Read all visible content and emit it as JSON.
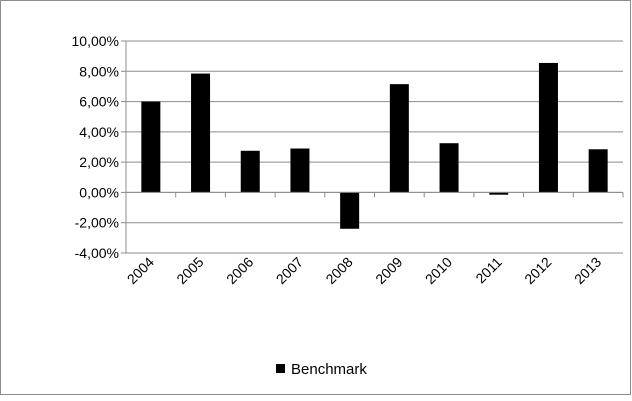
{
  "chart_data": {
    "type": "bar",
    "categories": [
      "2004",
      "2005",
      "2006",
      "2007",
      "2008",
      "2009",
      "2010",
      "2011",
      "2012",
      "2013"
    ],
    "series": [
      {
        "name": "Benchmark",
        "values": [
          6.0,
          7.85,
          2.75,
          2.9,
          -2.4,
          7.15,
          3.25,
          -0.15,
          8.55,
          2.85
        ],
        "color": "#000000"
      }
    ],
    "y_ticks": [
      "10,00%",
      "8,00%",
      "6,00%",
      "4,00%",
      "2,00%",
      "0,00%",
      "-2,00%",
      "-4,00%"
    ],
    "ylim": [
      -4,
      10
    ],
    "y_tick_step": 2,
    "grid": true,
    "gridline_color": "#8c8c8c",
    "legend": {
      "position": "bottom",
      "entries": [
        "Benchmark"
      ]
    }
  }
}
